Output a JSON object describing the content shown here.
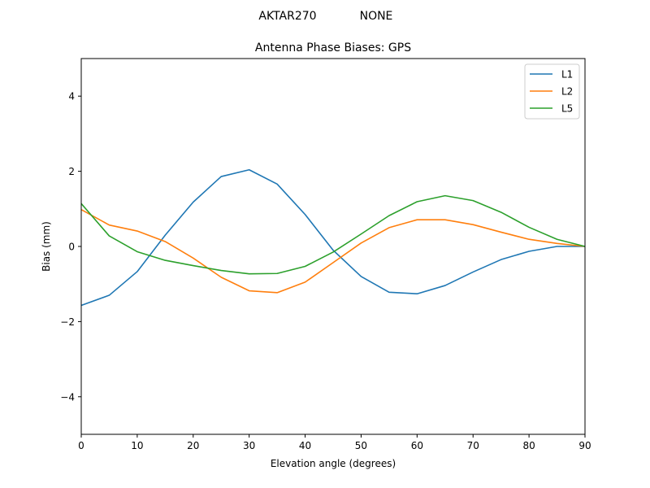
{
  "chart_data": {
    "type": "line",
    "suptitle": {
      "left": "AKTAR270",
      "right": "NONE"
    },
    "title": "Antenna Phase Biases: GPS",
    "xlabel": "Elevation angle (degrees)",
    "ylabel": "Bias (mm)",
    "xlim": [
      0,
      90
    ],
    "ylim": [
      -5,
      5
    ],
    "x_ticks": [
      0,
      10,
      20,
      30,
      40,
      50,
      60,
      70,
      80,
      90
    ],
    "y_ticks": [
      -4,
      -2,
      0,
      2,
      4
    ],
    "grid": false,
    "legend_position": "top-right",
    "x": [
      0,
      5,
      10,
      15,
      20,
      25,
      30,
      35,
      40,
      45,
      50,
      55,
      60,
      65,
      70,
      75,
      80,
      85,
      90
    ],
    "series": [
      {
        "name": "L1",
        "color": "#1f77b4",
        "values": [
          -1.57,
          -1.3,
          -0.67,
          0.3,
          1.18,
          1.86,
          2.04,
          1.66,
          0.85,
          -0.1,
          -0.8,
          -1.22,
          -1.26,
          -1.04,
          -0.68,
          -0.35,
          -0.13,
          0.0,
          0.0
        ]
      },
      {
        "name": "L2",
        "color": "#ff7f0e",
        "values": [
          0.98,
          0.57,
          0.41,
          0.13,
          -0.31,
          -0.82,
          -1.18,
          -1.23,
          -0.95,
          -0.43,
          0.09,
          0.5,
          0.71,
          0.71,
          0.58,
          0.38,
          0.19,
          0.08,
          0.0
        ]
      },
      {
        "name": "L5",
        "color": "#2ca02c",
        "values": [
          1.14,
          0.28,
          -0.14,
          -0.37,
          -0.51,
          -0.64,
          -0.73,
          -0.72,
          -0.53,
          -0.15,
          0.33,
          0.82,
          1.19,
          1.35,
          1.22,
          0.91,
          0.51,
          0.19,
          0.0
        ]
      }
    ]
  }
}
